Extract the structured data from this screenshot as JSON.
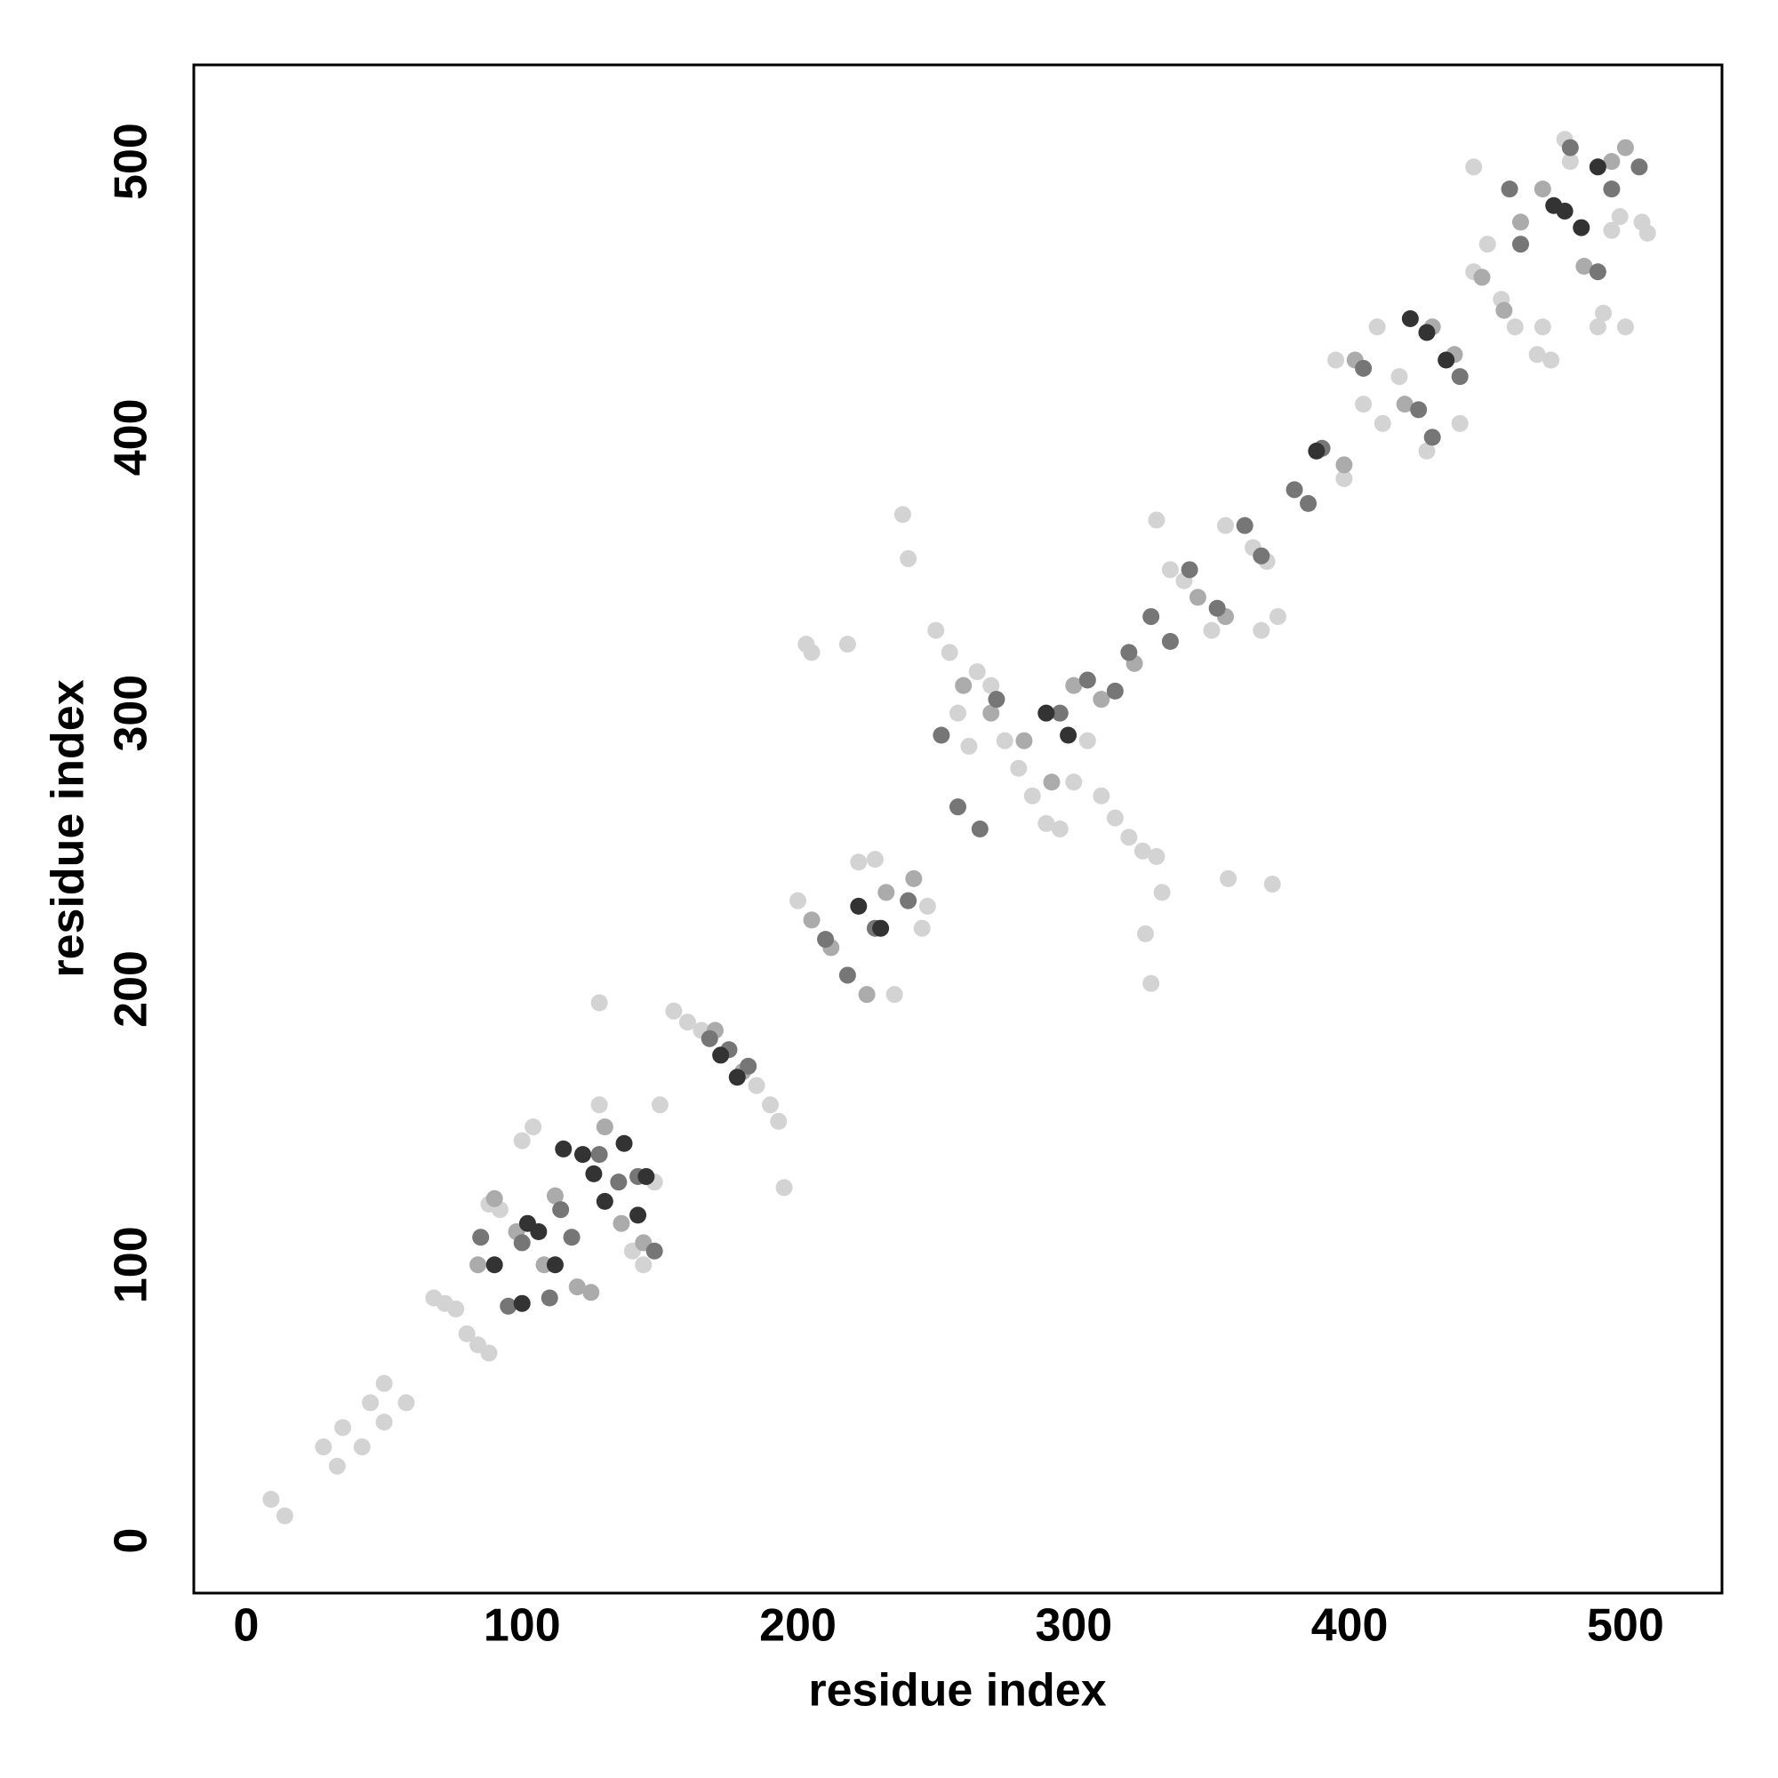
{
  "chart_data": {
    "type": "scatter",
    "xlabel": "residue index",
    "ylabel": "residue index",
    "xlim": [
      -19,
      535
    ],
    "ylim": [
      -19,
      535
    ],
    "xticks": [
      0,
      100,
      200,
      300,
      400,
      500
    ],
    "yticks": [
      0,
      100,
      200,
      300,
      400,
      500
    ],
    "grid": false,
    "series": [
      {
        "color": "#d3d3d3",
        "x": [
          9,
          14,
          28,
          33,
          35,
          42,
          45,
          50,
          50,
          58,
          68,
          72,
          76,
          80,
          84,
          88,
          88,
          92,
          100,
          104,
          128,
          128,
          140,
          144,
          148,
          150,
          155,
          160,
          165,
          185,
          190,
          193,
          195,
          200,
          203,
          205,
          218,
          222,
          228,
          235,
          238,
          240,
          245,
          247,
          250,
          255,
          258,
          262,
          265,
          270,
          275,
          280,
          285,
          290,
          295,
          300,
          305,
          310,
          315,
          320,
          325,
          326,
          328,
          330,
          332,
          330,
          335,
          340,
          350,
          355,
          356,
          365,
          370,
          372,
          374,
          368,
          395,
          398,
          405,
          410,
          412,
          418,
          428,
          440,
          445,
          450,
          445,
          455,
          460,
          468,
          470,
          473,
          478,
          480,
          490,
          492,
          495,
          498,
          500,
          506,
          508
        ],
        "y": [
          15,
          9,
          34,
          27,
          41,
          34,
          50,
          57,
          43,
          50,
          88,
          86,
          84,
          75,
          71,
          68,
          122,
          120,
          145,
          150,
          195,
          158,
          105,
          100,
          130,
          158,
          192,
          188,
          185,
          165,
          158,
          152,
          128,
          232,
          325,
          322,
          325,
          246,
          247,
          198,
          372,
          356,
          222,
          230,
          330,
          322,
          300,
          288,
          315,
          310,
          290,
          280,
          270,
          260,
          258,
          275,
          290,
          270,
          262,
          255,
          250,
          220,
          202,
          248,
          235,
          370,
          352,
          348,
          330,
          368,
          240,
          360,
          355,
          238,
          335,
          330,
          428,
          385,
          412,
          440,
          405,
          422,
          395,
          405,
          460,
          470,
          498,
          450,
          440,
          430,
          440,
          428,
          508,
          500,
          440,
          445,
          475,
          480,
          440,
          478,
          474
        ]
      },
      {
        "color": "#ababab",
        "x": [
          84,
          90,
          98,
          108,
          112,
          120,
          125,
          130,
          136,
          144,
          170,
          180,
          205,
          212,
          225,
          232,
          242,
          260,
          270,
          282,
          292,
          300,
          310,
          322,
          345,
          355,
          398,
          402,
          420,
          430,
          438,
          448,
          456,
          462,
          470,
          485,
          495,
          500
        ],
        "y": [
          100,
          124,
          112,
          100,
          125,
          92,
          90,
          150,
          115,
          108,
          185,
          170,
          225,
          215,
          198,
          235,
          240,
          310,
          300,
          290,
          275,
          310,
          305,
          318,
          342,
          335,
          390,
          428,
          412,
          440,
          430,
          458,
          446,
          478,
          490,
          462,
          500,
          505
        ]
      },
      {
        "color": "#767676",
        "x": [
          85,
          95,
          100,
          110,
          114,
          118,
          128,
          135,
          142,
          148,
          168,
          175,
          182,
          210,
          218,
          228,
          240,
          252,
          258,
          266,
          272,
          295,
          305,
          315,
          320,
          328,
          335,
          342,
          352,
          362,
          368,
          380,
          385,
          390,
          405,
          425,
          430,
          440,
          458,
          462,
          480,
          490,
          495,
          505
        ],
        "y": [
          110,
          85,
          108,
          88,
          120,
          110,
          140,
          130,
          132,
          105,
          182,
          178,
          172,
          218,
          205,
          222,
          232,
          292,
          266,
          258,
          305,
          300,
          312,
          308,
          322,
          335,
          326,
          352,
          338,
          368,
          357,
          381,
          376,
          396,
          425,
          410,
          400,
          422,
          490,
          470,
          505,
          460,
          490,
          498
        ]
      },
      {
        "color": "#333333",
        "x": [
          90,
          100,
          102,
          106,
          112,
          115,
          122,
          126,
          130,
          137,
          142,
          145,
          172,
          178,
          222,
          230,
          290,
          298,
          388,
          422,
          428,
          435,
          474,
          478,
          484,
          490
        ],
        "y": [
          100,
          86,
          115,
          112,
          100,
          142,
          140,
          133,
          123,
          144,
          118,
          132,
          176,
          168,
          230,
          222,
          300,
          292,
          395,
          443,
          438,
          428,
          484,
          482,
          476,
          498
        ]
      }
    ]
  }
}
